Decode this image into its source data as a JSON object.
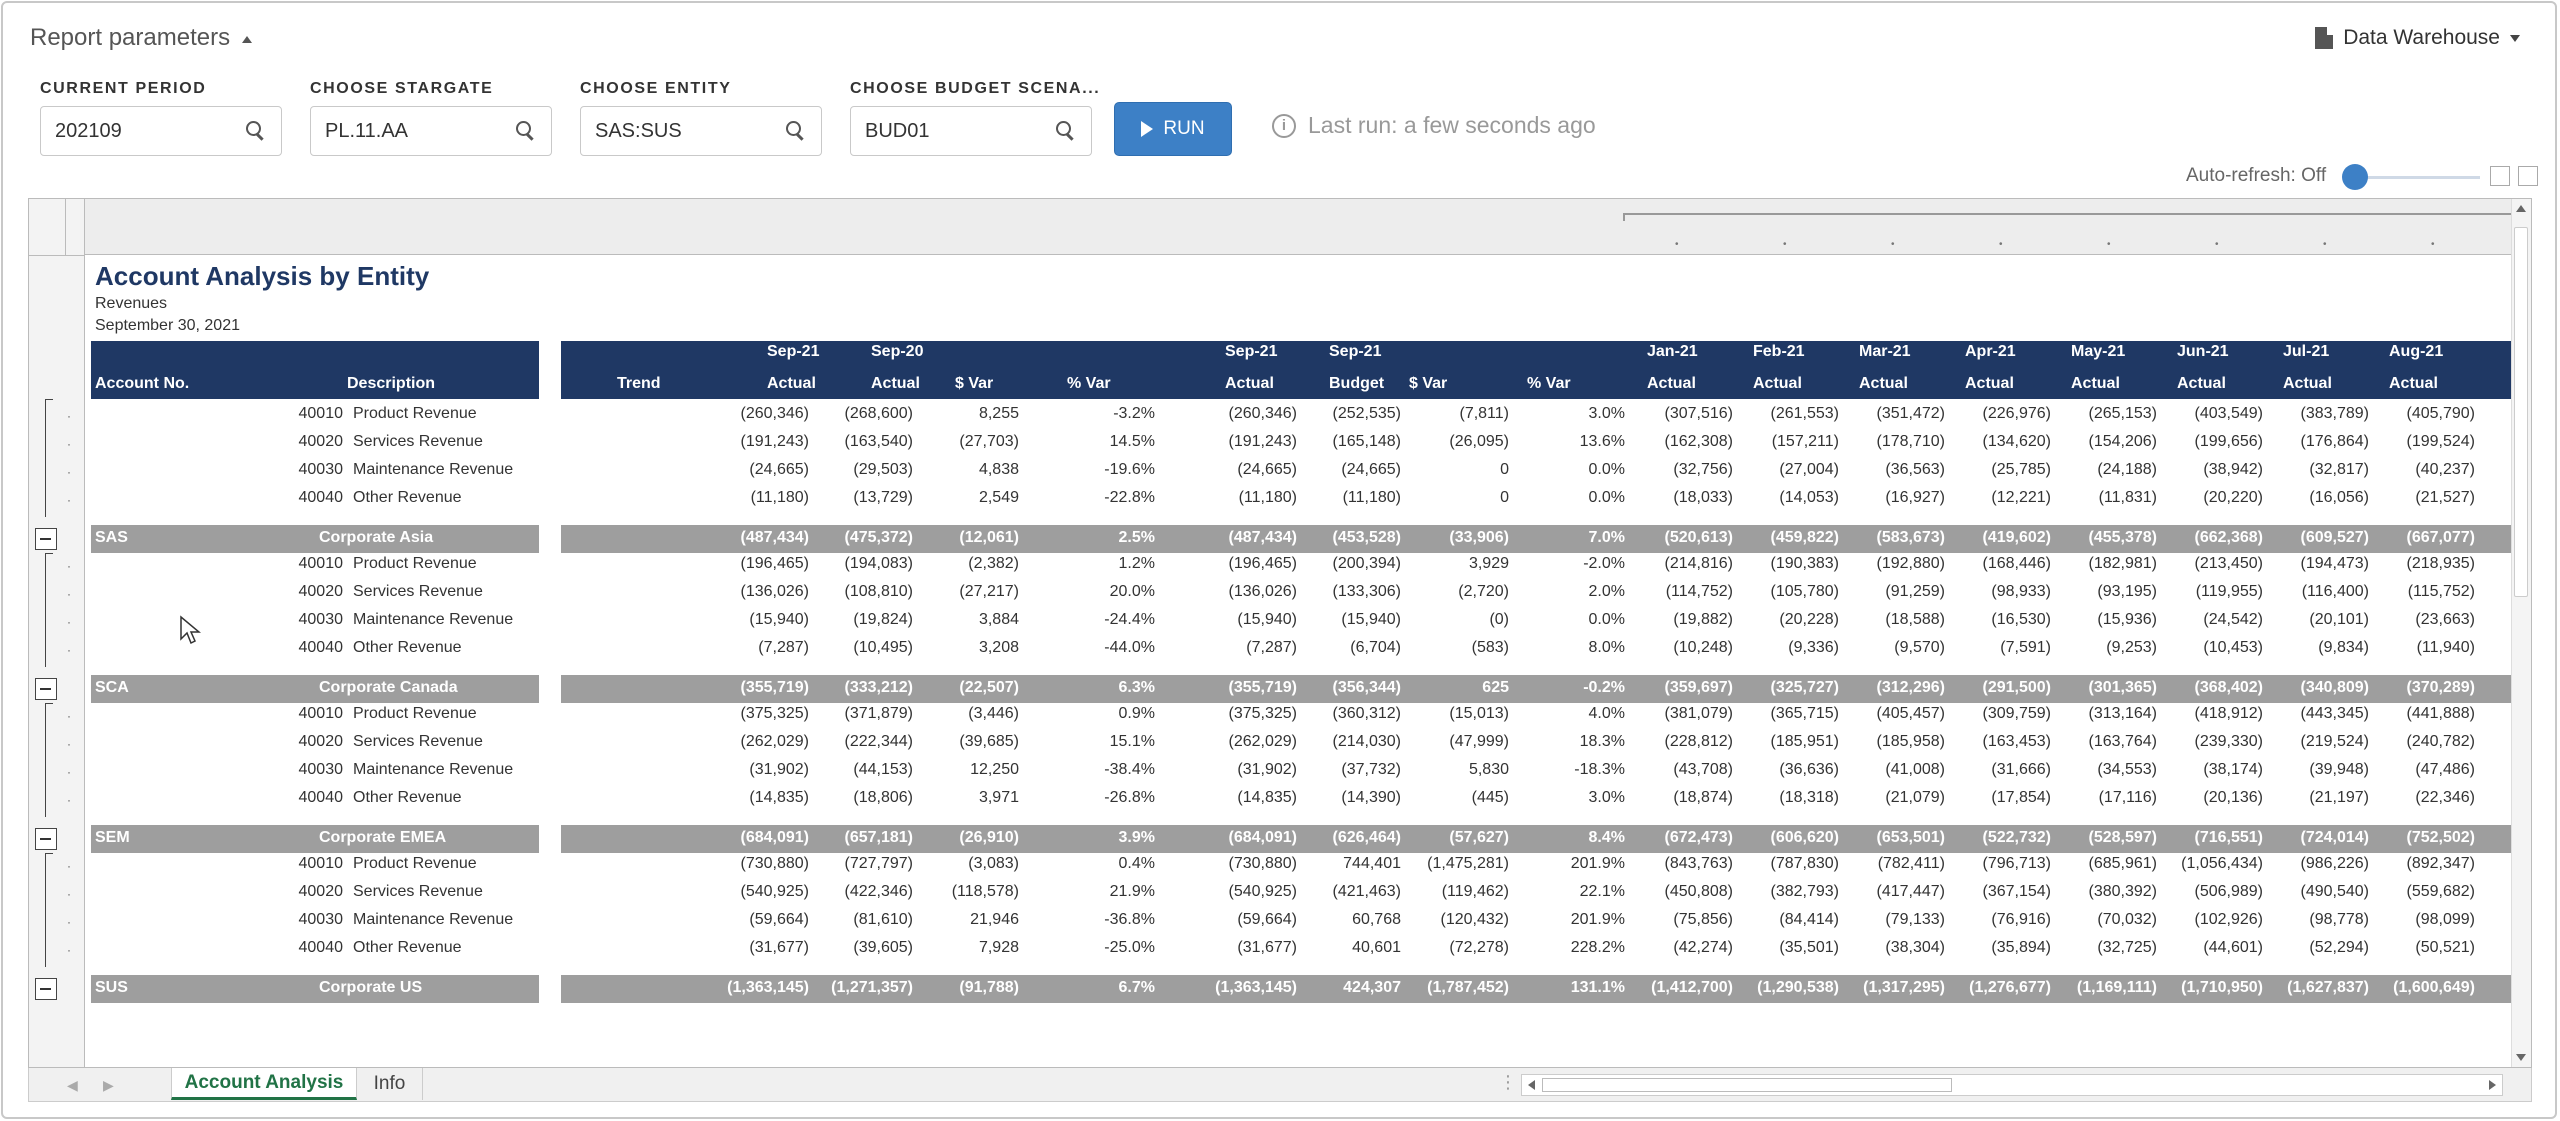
{
  "header": {
    "title": "Report parameters",
    "datasource": "Data Warehouse"
  },
  "params": [
    {
      "label": "CURRENT PERIOD",
      "value": "202109"
    },
    {
      "label": "CHOOSE STARGATE",
      "value": "PL.11.AA"
    },
    {
      "label": "CHOOSE ENTITY",
      "value": "SAS:SUS"
    },
    {
      "label": "CHOOSE BUDGET SCENA...",
      "value": "BUD01"
    }
  ],
  "run": {
    "label": "RUN",
    "last_run": "Last run: a few seconds ago"
  },
  "autorefresh": {
    "label": "Auto-refresh: Off"
  },
  "report": {
    "title": "Account Analysis by Entity",
    "subtitle1": "Revenues",
    "subtitle2": "September 30, 2021"
  },
  "columns": {
    "account": "Account No.",
    "description": "Description",
    "trend": "Trend",
    "g1": [
      [
        "Sep-21",
        "Actual"
      ],
      [
        "Sep-20",
        "Actual"
      ],
      [
        "",
        "$ Var"
      ],
      [
        "",
        "% Var"
      ]
    ],
    "g2": [
      [
        "Sep-21",
        "Actual"
      ],
      [
        "Sep-21",
        "Budget"
      ],
      [
        "",
        "$ Var"
      ],
      [
        "",
        "% Var"
      ]
    ],
    "g3": [
      [
        "Jan-21",
        "Actual"
      ],
      [
        "Feb-21",
        "Actual"
      ],
      [
        "Mar-21",
        "Actual"
      ],
      [
        "Apr-21",
        "Actual"
      ],
      [
        "May-21",
        "Actual"
      ],
      [
        "Jun-21",
        "Actual"
      ],
      [
        "Jul-21",
        "Actual"
      ],
      [
        "Aug-21",
        "Actual"
      ]
    ]
  },
  "rows": [
    {
      "type": "detail",
      "acct": "40010",
      "desc": "Product Revenue",
      "g1": [
        "(260,346)",
        "(268,600)",
        "8,255",
        "-3.2%"
      ],
      "g2": [
        "(260,346)",
        "(252,535)",
        "(7,811)",
        "3.0%"
      ],
      "g3": [
        "(307,516)",
        "(261,553)",
        "(351,472)",
        "(226,976)",
        "(265,153)",
        "(403,549)",
        "(383,789)",
        "(405,790)"
      ]
    },
    {
      "type": "detail",
      "acct": "40020",
      "desc": "Services Revenue",
      "g1": [
        "(191,243)",
        "(163,540)",
        "(27,703)",
        "14.5%"
      ],
      "g2": [
        "(191,243)",
        "(165,148)",
        "(26,095)",
        "13.6%"
      ],
      "g3": [
        "(162,308)",
        "(157,211)",
        "(178,710)",
        "(134,620)",
        "(154,206)",
        "(199,656)",
        "(176,864)",
        "(199,524)"
      ]
    },
    {
      "type": "detail",
      "acct": "40030",
      "desc": "Maintenance Revenue",
      "g1": [
        "(24,665)",
        "(29,503)",
        "4,838",
        "-19.6%"
      ],
      "g2": [
        "(24,665)",
        "(24,665)",
        "0",
        "0.0%"
      ],
      "g3": [
        "(32,756)",
        "(27,004)",
        "(36,563)",
        "(25,785)",
        "(24,188)",
        "(38,942)",
        "(32,817)",
        "(40,237)"
      ]
    },
    {
      "type": "detail",
      "acct": "40040",
      "desc": "Other Revenue",
      "g1": [
        "(11,180)",
        "(13,729)",
        "2,549",
        "-22.8%"
      ],
      "g2": [
        "(11,180)",
        "(11,180)",
        "0",
        "0.0%"
      ],
      "g3": [
        "(18,033)",
        "(14,053)",
        "(16,927)",
        "(12,221)",
        "(11,831)",
        "(20,220)",
        "(16,056)",
        "(21,527)"
      ]
    },
    {
      "type": "total",
      "acct": "SAS",
      "desc": "Corporate Asia",
      "g1": [
        "(487,434)",
        "(475,372)",
        "(12,061)",
        "2.5%"
      ],
      "g2": [
        "(487,434)",
        "(453,528)",
        "(33,906)",
        "7.0%"
      ],
      "g3": [
        "(520,613)",
        "(459,822)",
        "(583,673)",
        "(419,602)",
        "(455,378)",
        "(662,368)",
        "(609,527)",
        "(667,077)"
      ]
    },
    {
      "type": "detail",
      "acct": "40010",
      "desc": "Product Revenue",
      "g1": [
        "(196,465)",
        "(194,083)",
        "(2,382)",
        "1.2%"
      ],
      "g2": [
        "(196,465)",
        "(200,394)",
        "3,929",
        "-2.0%"
      ],
      "g3": [
        "(214,816)",
        "(190,383)",
        "(192,880)",
        "(168,446)",
        "(182,981)",
        "(213,450)",
        "(194,473)",
        "(218,935)"
      ]
    },
    {
      "type": "detail",
      "acct": "40020",
      "desc": "Services Revenue",
      "g1": [
        "(136,026)",
        "(108,810)",
        "(27,217)",
        "20.0%"
      ],
      "g2": [
        "(136,026)",
        "(133,306)",
        "(2,720)",
        "2.0%"
      ],
      "g3": [
        "(114,752)",
        "(105,780)",
        "(91,259)",
        "(98,933)",
        "(93,195)",
        "(119,955)",
        "(116,400)",
        "(115,752)"
      ]
    },
    {
      "type": "detail",
      "acct": "40030",
      "desc": "Maintenance Revenue",
      "g1": [
        "(15,940)",
        "(19,824)",
        "3,884",
        "-24.4%"
      ],
      "g2": [
        "(15,940)",
        "(15,940)",
        "(0)",
        "0.0%"
      ],
      "g3": [
        "(19,882)",
        "(20,228)",
        "(18,588)",
        "(16,530)",
        "(15,936)",
        "(24,542)",
        "(20,101)",
        "(23,663)"
      ]
    },
    {
      "type": "detail",
      "acct": "40040",
      "desc": "Other Revenue",
      "g1": [
        "(7,287)",
        "(10,495)",
        "3,208",
        "-44.0%"
      ],
      "g2": [
        "(7,287)",
        "(6,704)",
        "(583)",
        "8.0%"
      ],
      "g3": [
        "(10,248)",
        "(9,336)",
        "(9,570)",
        "(7,591)",
        "(9,253)",
        "(10,453)",
        "(9,834)",
        "(11,940)"
      ]
    },
    {
      "type": "total",
      "acct": "SCA",
      "desc": "Corporate Canada",
      "g1": [
        "(355,719)",
        "(333,212)",
        "(22,507)",
        "6.3%"
      ],
      "g2": [
        "(355,719)",
        "(356,344)",
        "625",
        "-0.2%"
      ],
      "g3": [
        "(359,697)",
        "(325,727)",
        "(312,296)",
        "(291,500)",
        "(301,365)",
        "(368,402)",
        "(340,809)",
        "(370,289)"
      ]
    },
    {
      "type": "detail",
      "acct": "40010",
      "desc": "Product Revenue",
      "g1": [
        "(375,325)",
        "(371,879)",
        "(3,446)",
        "0.9%"
      ],
      "g2": [
        "(375,325)",
        "(360,312)",
        "(15,013)",
        "4.0%"
      ],
      "g3": [
        "(381,079)",
        "(365,715)",
        "(405,457)",
        "(309,759)",
        "(313,164)",
        "(418,912)",
        "(443,345)",
        "(441,888)"
      ]
    },
    {
      "type": "detail",
      "acct": "40020",
      "desc": "Services Revenue",
      "g1": [
        "(262,029)",
        "(222,344)",
        "(39,685)",
        "15.1%"
      ],
      "g2": [
        "(262,029)",
        "(214,030)",
        "(47,999)",
        "18.3%"
      ],
      "g3": [
        "(228,812)",
        "(185,951)",
        "(185,958)",
        "(163,453)",
        "(163,764)",
        "(239,330)",
        "(219,524)",
        "(240,782)"
      ]
    },
    {
      "type": "detail",
      "acct": "40030",
      "desc": "Maintenance Revenue",
      "g1": [
        "(31,902)",
        "(44,153)",
        "12,250",
        "-38.4%"
      ],
      "g2": [
        "(31,902)",
        "(37,732)",
        "5,830",
        "-18.3%"
      ],
      "g3": [
        "(43,708)",
        "(36,636)",
        "(41,008)",
        "(31,666)",
        "(34,553)",
        "(38,174)",
        "(39,948)",
        "(47,486)"
      ]
    },
    {
      "type": "detail",
      "acct": "40040",
      "desc": "Other Revenue",
      "g1": [
        "(14,835)",
        "(18,806)",
        "3,971",
        "-26.8%"
      ],
      "g2": [
        "(14,835)",
        "(14,390)",
        "(445)",
        "3.0%"
      ],
      "g3": [
        "(18,874)",
        "(18,318)",
        "(21,079)",
        "(17,854)",
        "(17,116)",
        "(20,136)",
        "(21,197)",
        "(22,346)"
      ]
    },
    {
      "type": "total",
      "acct": "SEM",
      "desc": "Corporate EMEA",
      "g1": [
        "(684,091)",
        "(657,181)",
        "(26,910)",
        "3.9%"
      ],
      "g2": [
        "(684,091)",
        "(626,464)",
        "(57,627)",
        "8.4%"
      ],
      "g3": [
        "(672,473)",
        "(606,620)",
        "(653,501)",
        "(522,732)",
        "(528,597)",
        "(716,551)",
        "(724,014)",
        "(752,502)"
      ]
    },
    {
      "type": "detail",
      "acct": "40010",
      "desc": "Product Revenue",
      "g1": [
        "(730,880)",
        "(727,797)",
        "(3,083)",
        "0.4%"
      ],
      "g2": [
        "(730,880)",
        "744,401",
        "(1,475,281)",
        "201.9%"
      ],
      "g3": [
        "(843,763)",
        "(787,830)",
        "(782,411)",
        "(796,713)",
        "(685,961)",
        "(1,056,434)",
        "(986,226)",
        "(892,347)"
      ]
    },
    {
      "type": "detail",
      "acct": "40020",
      "desc": "Services Revenue",
      "g1": [
        "(540,925)",
        "(422,346)",
        "(118,578)",
        "21.9%"
      ],
      "g2": [
        "(540,925)",
        "(421,463)",
        "(119,462)",
        "22.1%"
      ],
      "g3": [
        "(450,808)",
        "(382,793)",
        "(417,447)",
        "(367,154)",
        "(380,392)",
        "(506,989)",
        "(490,540)",
        "(559,682)"
      ]
    },
    {
      "type": "detail",
      "acct": "40030",
      "desc": "Maintenance Revenue",
      "g1": [
        "(59,664)",
        "(81,610)",
        "21,946",
        "-36.8%"
      ],
      "g2": [
        "(59,664)",
        "60,768",
        "(120,432)",
        "201.9%"
      ],
      "g3": [
        "(75,856)",
        "(84,414)",
        "(79,133)",
        "(76,916)",
        "(70,032)",
        "(102,926)",
        "(98,778)",
        "(98,099)"
      ]
    },
    {
      "type": "detail",
      "acct": "40040",
      "desc": "Other Revenue",
      "g1": [
        "(31,677)",
        "(39,605)",
        "7,928",
        "-25.0%"
      ],
      "g2": [
        "(31,677)",
        "40,601",
        "(72,278)",
        "228.2%"
      ],
      "g3": [
        "(42,274)",
        "(35,501)",
        "(38,304)",
        "(35,894)",
        "(32,725)",
        "(44,601)",
        "(52,294)",
        "(50,521)"
      ]
    },
    {
      "type": "total",
      "acct": "SUS",
      "desc": "Corporate US",
      "g1": [
        "(1,363,145)",
        "(1,271,357)",
        "(91,788)",
        "6.7%"
      ],
      "g2": [
        "(1,363,145)",
        "424,307",
        "(1,787,452)",
        "131.1%"
      ],
      "g3": [
        "(1,412,700)",
        "(1,290,538)",
        "(1,317,295)",
        "(1,276,677)",
        "(1,169,111)",
        "(1,710,950)",
        "(1,627,837)",
        "(1,600,649)"
      ]
    }
  ],
  "tabs": [
    {
      "label": "Account Analysis",
      "active": true
    },
    {
      "label": "Info",
      "active": false
    }
  ],
  "colors": {
    "header_navy": "#1f3864",
    "total_gray": "#9e9e9e",
    "run_blue": "#3d80c6",
    "tab_green": "#217346"
  }
}
